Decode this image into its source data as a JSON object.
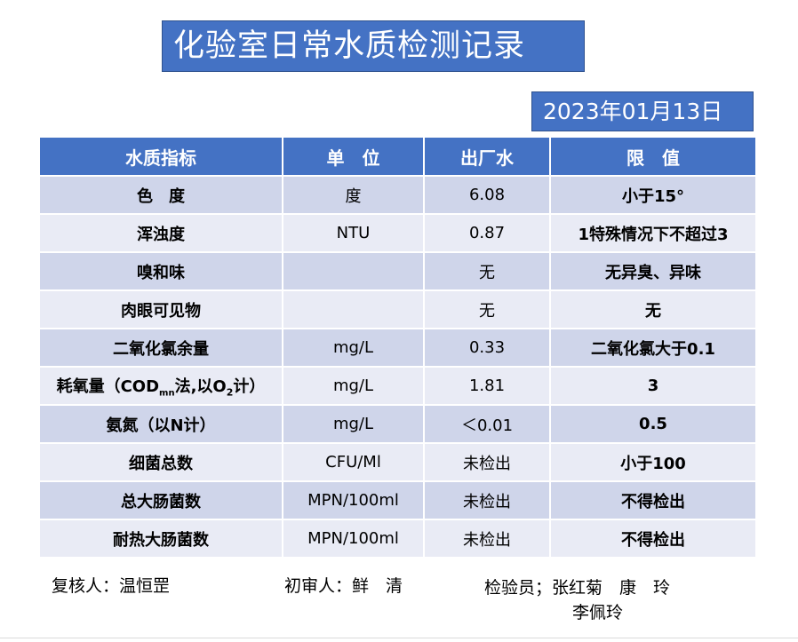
{
  "title": "化验室日常水质检测记录",
  "date": "2023年01月13日",
  "table": {
    "headers": [
      "水质指标",
      "单　位",
      "出厂水",
      "限　值"
    ],
    "rows": [
      {
        "name": "色　度",
        "unit": "度",
        "value": "6.08",
        "limit": "小于15°"
      },
      {
        "name": "浑浊度",
        "unit": "NTU",
        "value": "0.87",
        "limit": "1特殊情况下不超过3"
      },
      {
        "name": "嗅和味",
        "unit": "",
        "value": "无",
        "limit": "无异臭、异味"
      },
      {
        "name": "肉眼可见物",
        "unit": "",
        "value": "无",
        "limit": "无"
      },
      {
        "name": "二氧化氯余量",
        "unit": "mg/L",
        "value": "0.33",
        "limit": "二氧化氯大于0.1"
      },
      {
        "name_prefix": "耗氧量（COD",
        "name_sub1": "mn",
        "name_mid": "法,以O",
        "name_sub2": "2",
        "name_suffix": "计）",
        "unit": "mg/L",
        "value": "1.81",
        "limit": "3"
      },
      {
        "name": "氨氮（以N计）",
        "unit": "mg/L",
        "value": "＜0.01",
        "limit": "0.5"
      },
      {
        "name": "细菌总数",
        "unit": "CFU/Ml",
        "value": "未检出",
        "limit": "小于100"
      },
      {
        "name": "总大肠菌数",
        "unit": "MPN/100ml",
        "value": "未检出",
        "limit": "不得检出"
      },
      {
        "name": "耐热大肠菌数",
        "unit": "MPN/100ml",
        "value": "未检出",
        "limit": "不得检出"
      }
    ]
  },
  "footer": {
    "reviewer": "复核人：温恒罡",
    "preliminary": "初审人：鲜　清",
    "inspector_line1": "检验员；张红菊　康　玲",
    "inspector_line2": "李佩玲"
  }
}
